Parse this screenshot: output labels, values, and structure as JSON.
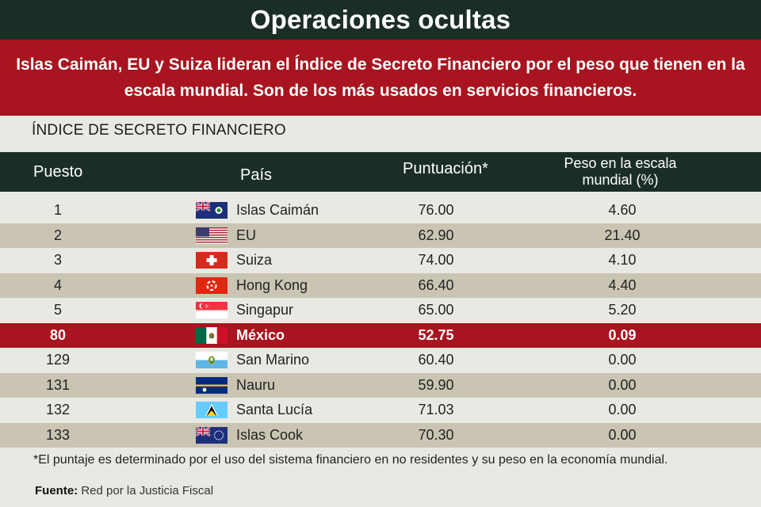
{
  "title": "Operaciones ocultas",
  "subtitle": "Islas Caimán, EU y Suiza lideran el Índice de Secreto Financiero por el peso que tienen en la escala mundial. Son de los más usados en servicios financieros.",
  "section_label": "ÍNDICE DE SECRETO FINANCIERO",
  "colors": {
    "header_bg": "#1a2e26",
    "accent_red": "#a8141f",
    "band": "#cac5b3",
    "page_bg": "#e9e9e4"
  },
  "chart_data": {
    "type": "table",
    "columns": [
      "Puesto",
      "País",
      "Puntuación*",
      "Peso en la escala mundial (%)"
    ],
    "highlight_country": "México",
    "rows": [
      {
        "rank": "1",
        "country": "Islas Caimán",
        "flag": "cayman-flag-icon",
        "score": "76.00",
        "weight": "4.60"
      },
      {
        "rank": "2",
        "country": "EU",
        "flag": "usa-flag-icon",
        "score": "62.90",
        "weight": "21.40"
      },
      {
        "rank": "3",
        "country": "Suiza",
        "flag": "switzerland-flag-icon",
        "score": "74.00",
        "weight": "4.10"
      },
      {
        "rank": "4",
        "country": "Hong Kong",
        "flag": "hong-kong-flag-icon",
        "score": "66.40",
        "weight": "4.40"
      },
      {
        "rank": "5",
        "country": "Singapur",
        "flag": "singapore-flag-icon",
        "score": "65.00",
        "weight": "5.20"
      },
      {
        "rank": "80",
        "country": "México",
        "flag": "mexico-flag-icon",
        "score": "52.75",
        "weight": "0.09"
      },
      {
        "rank": "129",
        "country": "San Marino",
        "flag": "san-marino-flag-icon",
        "score": "60.40",
        "weight": "0.00"
      },
      {
        "rank": "131",
        "country": "Nauru",
        "flag": "nauru-flag-icon",
        "score": "59.90",
        "weight": "0.00"
      },
      {
        "rank": "132",
        "country": "Santa Lucía",
        "flag": "saint-lucia-flag-icon",
        "score": "71.03",
        "weight": "0.00"
      },
      {
        "rank": "133",
        "country": "Islas Cook",
        "flag": "cook-islands-flag-icon",
        "score": "70.30",
        "weight": "0.00"
      }
    ]
  },
  "footnote": "*El puntaje es determinado por el uso del sistema financiero en no residentes y su peso en la economía mundial.",
  "source": {
    "label": "Fuente:",
    "text": " Red por la Justicia Fiscal"
  }
}
